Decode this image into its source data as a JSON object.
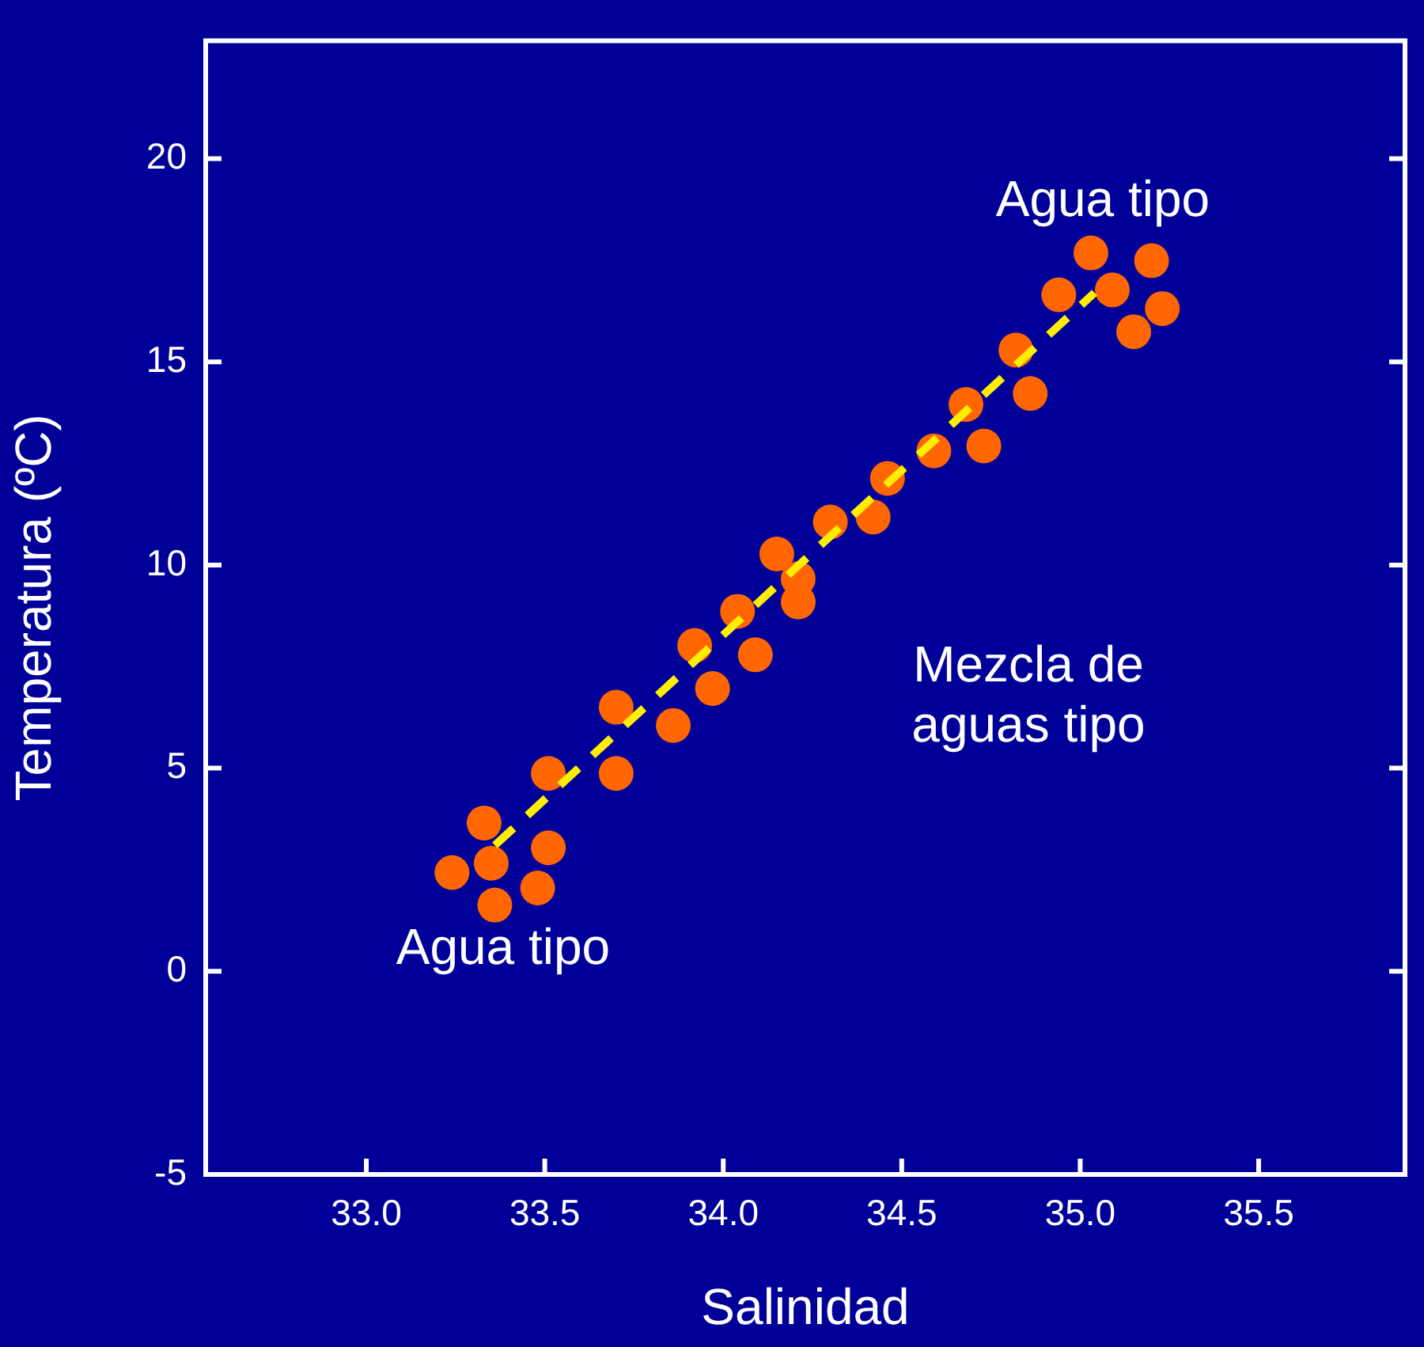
{
  "chart_data": {
    "type": "scatter",
    "xlabel": "Salinidad",
    "ylabel": "Temperatura (ºC)",
    "xlim": [
      32.55,
      35.91
    ],
    "ylim": [
      -5,
      22.9
    ],
    "xticks": [
      {
        "value": 33,
        "label": "33.0"
      },
      {
        "value": 33.5,
        "label": "33.5"
      },
      {
        "value": 34,
        "label": "34.0"
      },
      {
        "value": 34.5,
        "label": "34.5"
      },
      {
        "value": 35,
        "label": "35.0"
      },
      {
        "value": 35.5,
        "label": "35.5"
      }
    ],
    "yticks": [
      -5,
      0,
      5,
      10,
      15,
      20
    ],
    "grid": false,
    "legend": false,
    "marker": "circle",
    "series": [
      {
        "color": "#ff6600",
        "x": [
          33.24,
          33.33,
          33.35,
          33.36,
          33.48,
          33.51,
          33.51,
          33.7,
          33.7,
          33.86,
          33.92,
          33.97,
          34.04,
          34.09,
          34.15,
          34.21,
          34.21,
          34.3,
          34.42,
          34.46,
          34.59,
          34.68,
          34.73,
          34.82,
          34.86,
          34.94,
          35.03,
          35.09,
          35.15,
          35.2,
          35.23
        ],
        "values": [
          2.43,
          3.65,
          2.66,
          1.63,
          2.05,
          3.04,
          4.87,
          4.87,
          6.5,
          6.05,
          8.02,
          6.96,
          8.86,
          7.79,
          10.27,
          9.66,
          9.09,
          11.06,
          11.18,
          12.13,
          12.81,
          13.95,
          12.93,
          15.29,
          14.22,
          16.65,
          17.68,
          16.77,
          15.74,
          17.49,
          16.31
        ]
      },
      {
        "type": "line",
        "color": "#ffee00",
        "line_style": "dashed",
        "marker": "none",
        "x": [
          33.36,
          35.04
        ],
        "values": [
          3.1,
          16.7
        ]
      }
    ],
    "annotations": [
      "Agua tipo",
      "Agua tipo",
      "Mezcla de\naguas tipo"
    ]
  }
}
